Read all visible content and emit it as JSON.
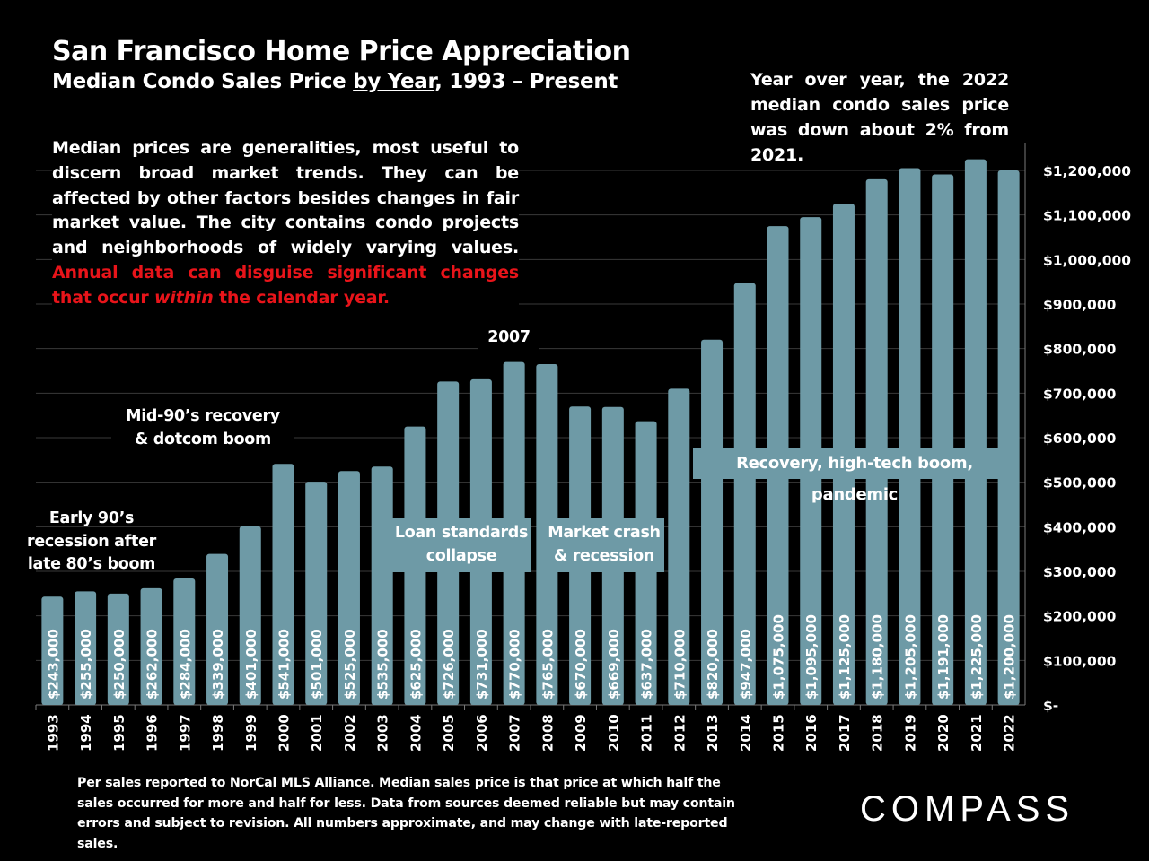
{
  "header": {
    "title": "San Francisco Home Price Appreciation",
    "subtitle_pre": "Median Condo Sales Price ",
    "subtitle_underlined": "by Year",
    "subtitle_post": ", 1993 – Present"
  },
  "intro": {
    "text": "Median prices are generalities, most useful to discern broad market trends. They can be affected by other factors besides changes in fair market value. The city contains condo projects and neighborhoods of widely varying values.",
    "red_pre": "Annual data can disguise significant changes that occur ",
    "red_italic": "within",
    "red_post": " the calendar year."
  },
  "yoy_note": "Year over year, the 2022 median condo sales price was down about 2% from 2021.",
  "annotations": {
    "early90s_l1": "Early 90’s",
    "early90s_l2": "recession after",
    "early90s_l3": "late 80’s boom",
    "mid90s_l1": "Mid-90’s recovery",
    "mid90s_l2": "& dotcom boom",
    "year2007": "2007",
    "loan_l1": "Loan standards",
    "loan_l2": "collapse",
    "crash_l1": "Market crash",
    "crash_l2": "& recession",
    "recovery": "Recovery, high-tech boom, pandemic"
  },
  "footer": "Per sales reported to NorCal MLS Alliance. Median sales price is that price at which half the sales occurred for more and half for less. Data from sources deemed reliable but may contain errors and subject to revision. All numbers approximate, and may change with late-reported sales.",
  "logo": "COMPASS",
  "chart_data": {
    "type": "bar",
    "categories": [
      "1993",
      "1994",
      "1995",
      "1996",
      "1997",
      "1998",
      "1999",
      "2000",
      "2001",
      "2002",
      "2003",
      "2004",
      "2005",
      "2006",
      "2007",
      "2008",
      "2009",
      "2010",
      "2011",
      "2012",
      "2013",
      "2014",
      "2015",
      "2016",
      "2017",
      "2018",
      "2019",
      "2020",
      "2021",
      "2022"
    ],
    "values": [
      243000,
      255000,
      250000,
      262000,
      284000,
      339000,
      401000,
      541000,
      501000,
      525000,
      535000,
      625000,
      726000,
      731000,
      770000,
      765000,
      670000,
      669000,
      637000,
      710000,
      820000,
      947000,
      1075000,
      1095000,
      1125000,
      1180000,
      1205000,
      1191000,
      1225000,
      1200000
    ],
    "data_labels": [
      "$243,000",
      "$255,000",
      "$250,000",
      "$262,000",
      "$284,000",
      "$339,000",
      "$401,000",
      "$541,000",
      "$501,000",
      "$525,000",
      "$535,000",
      "$625,000",
      "$726,000",
      "$731,000",
      "$770,000",
      "$765,000",
      "$670,000",
      "$669,000",
      "$637,000",
      "$710,000",
      "$820,000",
      "$947,000",
      "$1,075,000",
      "$1,095,000",
      "$1,125,000",
      "$1,180,000",
      "$1,205,000",
      "$1,191,000",
      "$1,225,000",
      "$1,200,000"
    ],
    "y_ticks": [
      0,
      100000,
      200000,
      300000,
      400000,
      500000,
      600000,
      700000,
      800000,
      900000,
      1000000,
      1100000,
      1200000
    ],
    "y_tick_labels": [
      "$-",
      "$100,000",
      "$200,000",
      "$300,000",
      "$400,000",
      "$500,000",
      "$600,000",
      "$700,000",
      "$800,000",
      "$900,000",
      "$1,000,000",
      "$1,100,000",
      "$1,200,000"
    ],
    "ylim": [
      0,
      1280000
    ],
    "y_axis_position": "right",
    "grid": true,
    "bar_color": "#6e9aa6",
    "gridline_color": "#3a3a3a"
  }
}
